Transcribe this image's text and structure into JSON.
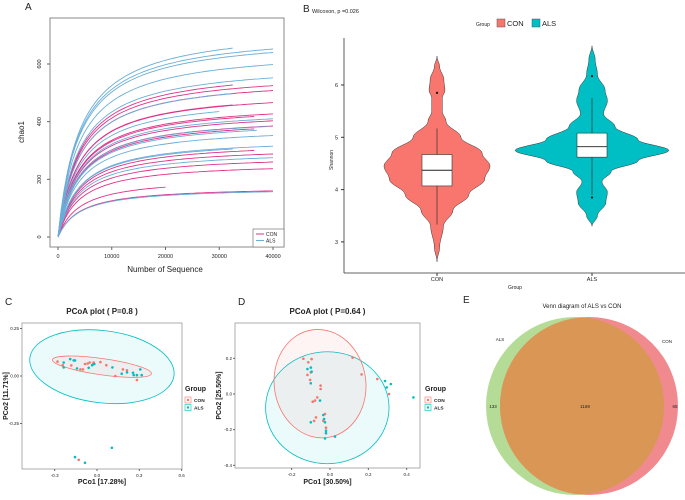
{
  "panel_labels": [
    "A",
    "B",
    "C",
    "D",
    "E"
  ],
  "colors": {
    "con_line": "#e0328a",
    "als_line": "#6aaed8",
    "con_fill": "#f8766d",
    "als_fill": "#00bfc4",
    "venn_als": "#b5dc96",
    "venn_con": "#f08a8e",
    "venn_overlap": "#d99655"
  },
  "chart_data": [
    {
      "panel": "A",
      "type": "line",
      "xlabel": "Number of Sequence",
      "ylabel": "chao1",
      "xlim": [
        0,
        40000
      ],
      "ylim": [
        0,
        700
      ],
      "xticks": [
        0,
        10000,
        20000,
        30000,
        40000
      ],
      "yticks": [
        0,
        200,
        400,
        600
      ],
      "legend": {
        "placement": "bottom-right",
        "entries": [
          "CON",
          "ALS"
        ]
      },
      "series": [
        {
          "name": "CON",
          "curves": [
            [
              32500,
              527
            ],
            [
              40000,
              525
            ],
            [
              40000,
              508
            ],
            [
              40000,
              466
            ],
            [
              32500,
              458
            ],
            [
              40000,
              427
            ],
            [
              36500,
              418
            ],
            [
              40000,
              403
            ],
            [
              40000,
              385
            ],
            [
              36500,
              375
            ],
            [
              36500,
              300
            ],
            [
              40000,
              288
            ],
            [
              40000,
              260
            ],
            [
              40000,
              237
            ],
            [
              20000,
              173
            ],
            [
              40000,
              160
            ]
          ]
        },
        {
          "name": "ALS",
          "curves": [
            [
              32500,
              655
            ],
            [
              40000,
              652
            ],
            [
              40000,
              640
            ],
            [
              40000,
              598
            ],
            [
              40000,
              552
            ],
            [
              32500,
              497
            ],
            [
              30000,
              435
            ],
            [
              40000,
              410
            ],
            [
              39000,
              383
            ],
            [
              37000,
              370
            ],
            [
              40000,
              352
            ],
            [
              40000,
              315
            ],
            [
              32500,
              305
            ],
            [
              40000,
              275
            ],
            [
              40000,
              157
            ]
          ]
        }
      ]
    },
    {
      "panel": "B",
      "type": "violin",
      "title": "Wilcoxon, p =0.026",
      "xlabel": "Group",
      "ylabel": "Shannon",
      "ylim": [
        2.5,
        6.9
      ],
      "yticks": [
        3,
        4,
        5,
        6
      ],
      "legend": {
        "placement": "top",
        "title": "Group",
        "entries": [
          "CON",
          "ALS"
        ]
      },
      "categories": [
        "CON",
        "ALS"
      ],
      "groups": [
        {
          "name": "CON",
          "q1": 4.07,
          "median": 4.37,
          "q3": 4.67,
          "whisker_low": 3.33,
          "whisker_high": 5.17,
          "outliers": [
            5.85
          ],
          "density": [
            [
              2.62,
              0
            ],
            [
              2.9,
              0.05
            ],
            [
              3.3,
              0.12
            ],
            [
              3.6,
              0.3
            ],
            [
              3.9,
              0.6
            ],
            [
              4.2,
              0.9
            ],
            [
              4.45,
              1
            ],
            [
              4.7,
              0.85
            ],
            [
              5.0,
              0.45
            ],
            [
              5.3,
              0.17
            ],
            [
              5.5,
              0.1
            ],
            [
              5.75,
              0.1
            ],
            [
              5.9,
              0.15
            ],
            [
              6.1,
              0.13
            ],
            [
              6.35,
              0.05
            ],
            [
              6.55,
              0
            ]
          ]
        },
        {
          "name": "ALS",
          "q1": 4.62,
          "median": 4.82,
          "q3": 5.08,
          "whisker_low": 3.9,
          "whisker_high": 5.75,
          "outliers": [
            6.17,
            3.85
          ],
          "density": [
            [
              3.3,
              0
            ],
            [
              3.5,
              0.07
            ],
            [
              3.75,
              0.18
            ],
            [
              3.95,
              0.2
            ],
            [
              4.15,
              0.13
            ],
            [
              4.35,
              0.25
            ],
            [
              4.55,
              0.6
            ],
            [
              4.75,
              1
            ],
            [
              4.95,
              0.6
            ],
            [
              5.2,
              0.3
            ],
            [
              5.45,
              0.15
            ],
            [
              5.7,
              0.2
            ],
            [
              5.9,
              0.17
            ],
            [
              6.2,
              0.07
            ],
            [
              6.5,
              0.04
            ],
            [
              6.75,
              0
            ]
          ]
        }
      ]
    },
    {
      "panel": "C",
      "type": "scatter",
      "title": "PCoA plot ( P=0.8 )",
      "xlabel": "PCo1 [17.28%]",
      "ylabel": "PCo2 [11.71%]",
      "xlim": [
        -0.38,
        0.6
      ],
      "ylim": [
        -0.5,
        0.27
      ],
      "xticks": [
        -0.3,
        0.0,
        0.3,
        0.6
      ],
      "xtick_labels": [
        "-0.3",
        "0.0",
        "0.3",
        "0.6"
      ],
      "yticks": [
        0.25,
        0.0,
        -0.25
      ],
      "ytick_labels": [
        "0.25",
        "0.00",
        "-0.25"
      ],
      "legend": {
        "placement": "right",
        "title": "Group",
        "entries": [
          "CON",
          "ALS"
        ]
      },
      "series": [
        {
          "name": "CON",
          "points": [
            [
              -0.28,
              0.076
            ],
            [
              -0.243,
              0.057
            ],
            [
              -0.182,
              0.056
            ],
            [
              -0.118,
              0.035
            ],
            [
              -0.099,
              0.035
            ],
            [
              -0.085,
              0.063
            ],
            [
              -0.066,
              0.066
            ],
            [
              -0.052,
              0.071
            ],
            [
              -0.028,
              0.063
            ],
            [
              -0.024,
              0.071
            ],
            [
              0.024,
              0.073
            ],
            [
              0.066,
              0.057
            ],
            [
              0.13,
              0.0
            ],
            [
              0.184,
              0.035
            ],
            [
              0.213,
              0.03
            ],
            [
              0.283,
              -0.021
            ],
            [
              -0.13,
              -0.441
            ]
          ],
          "ellipse": {
            "cx": 0.035,
            "cy": 0.049,
            "rx": 0.354,
            "ry": 0.043,
            "angle": 8
          }
        },
        {
          "name": "ALS",
          "points": [
            [
              -0.236,
              0.071
            ],
            [
              -0.236,
              0.045
            ],
            [
              -0.19,
              0.089
            ],
            [
              -0.165,
              0.082
            ],
            [
              -0.156,
              0.082
            ],
            [
              -0.142,
              0.04
            ],
            [
              -0.059,
              0.043
            ],
            [
              -0.035,
              0.057
            ],
            [
              -0.019,
              0.063
            ],
            [
              0.109,
              0.045
            ],
            [
              0.175,
              0.012
            ],
            [
              0.213,
              0.019
            ],
            [
              0.255,
              0.017
            ],
            [
              0.26,
              0.005
            ],
            [
              0.283,
              0.005
            ],
            [
              0.307,
              0.035
            ],
            [
              0.317,
              0.005
            ],
            [
              -0.156,
              -0.427
            ],
            [
              -0.085,
              -0.457
            ],
            [
              0.106,
              -0.378
            ]
          ],
          "ellipse": {
            "cx": 0.035,
            "cy": 0.049,
            "rx": 0.515,
            "ry": 0.19,
            "angle": 7
          }
        }
      ]
    },
    {
      "panel": "D",
      "type": "scatter",
      "title": "PCoA plot ( P=0.64 )",
      "xlabel": "PCo1 [30.50%]",
      "ylabel": "PCo2 [25.50%]",
      "xlim": [
        -0.3,
        0.48
      ],
      "ylim": [
        -0.41,
        0.4
      ],
      "xticks": [
        -0.2,
        0.0,
        0.2,
        0.4
      ],
      "xtick_labels": [
        "-0.2",
        "0.0",
        "0.2",
        "0.4"
      ],
      "yticks": [
        0.2,
        0.0,
        -0.2,
        -0.4
      ],
      "ytick_labels": [
        "0.2",
        "0.0",
        "-0.2",
        "-0.4"
      ],
      "legend": {
        "placement": "right",
        "title": "Group",
        "entries": [
          "CON",
          "ALS"
        ]
      },
      "series": [
        {
          "name": "CON",
          "points": [
            [
              -0.139,
              0.198
            ],
            [
              -0.113,
              0.178
            ],
            [
              -0.096,
              0.196
            ],
            [
              -0.1,
              0.121
            ],
            [
              -0.118,
              0.107
            ],
            [
              -0.104,
              0.079
            ],
            [
              -0.049,
              0.047
            ],
            [
              -0.049,
              0.028
            ],
            [
              -0.066,
              -0.019
            ],
            [
              -0.09,
              -0.043
            ],
            [
              -0.078,
              -0.037
            ],
            [
              -0.073,
              -0.131
            ],
            [
              -0.083,
              -0.151
            ],
            [
              -0.035,
              -0.15
            ],
            [
              -0.026,
              -0.112
            ],
            [
              -0.021,
              -0.189
            ],
            [
              0.118,
              0.204
            ],
            [
              0.165,
              0.11
            ],
            [
              0.247,
              0.084
            ],
            [
              0.308,
              0.0
            ]
          ],
          "ellipse": {
            "cx": -0.052,
            "cy": 0.058,
            "rx": 0.239,
            "ry": 0.305,
            "angle": -8
          }
        },
        {
          "name": "ALS",
          "points": [
            [
              -0.118,
              0.14
            ],
            [
              -0.1,
              0.148
            ],
            [
              -0.096,
              0.125
            ],
            [
              -0.1,
              0.06
            ],
            [
              -0.052,
              -0.037
            ],
            [
              -0.1,
              -0.159
            ],
            [
              -0.035,
              -0.118
            ],
            [
              -0.031,
              -0.14
            ],
            [
              -0.026,
              -0.159
            ],
            [
              -0.021,
              -0.206
            ],
            [
              -0.021,
              -0.22
            ],
            [
              -0.026,
              -0.249
            ],
            [
              0.026,
              -0.239
            ],
            [
              0.287,
              0.073
            ],
            [
              0.296,
              0.037
            ],
            [
              0.317,
              0.056
            ],
            [
              0.435,
              -0.019
            ]
          ],
          "ellipse": {
            "cx": -0.014,
            "cy": -0.077,
            "rx": 0.322,
            "ry": 0.314,
            "angle": 0
          }
        }
      ]
    },
    {
      "panel": "E",
      "type": "venn",
      "title": "Venn diagram of ALS vs CON",
      "sets": [
        "ALS",
        "CON"
      ],
      "only_als": "133",
      "overlap": "1169",
      "only_con": "65"
    }
  ]
}
